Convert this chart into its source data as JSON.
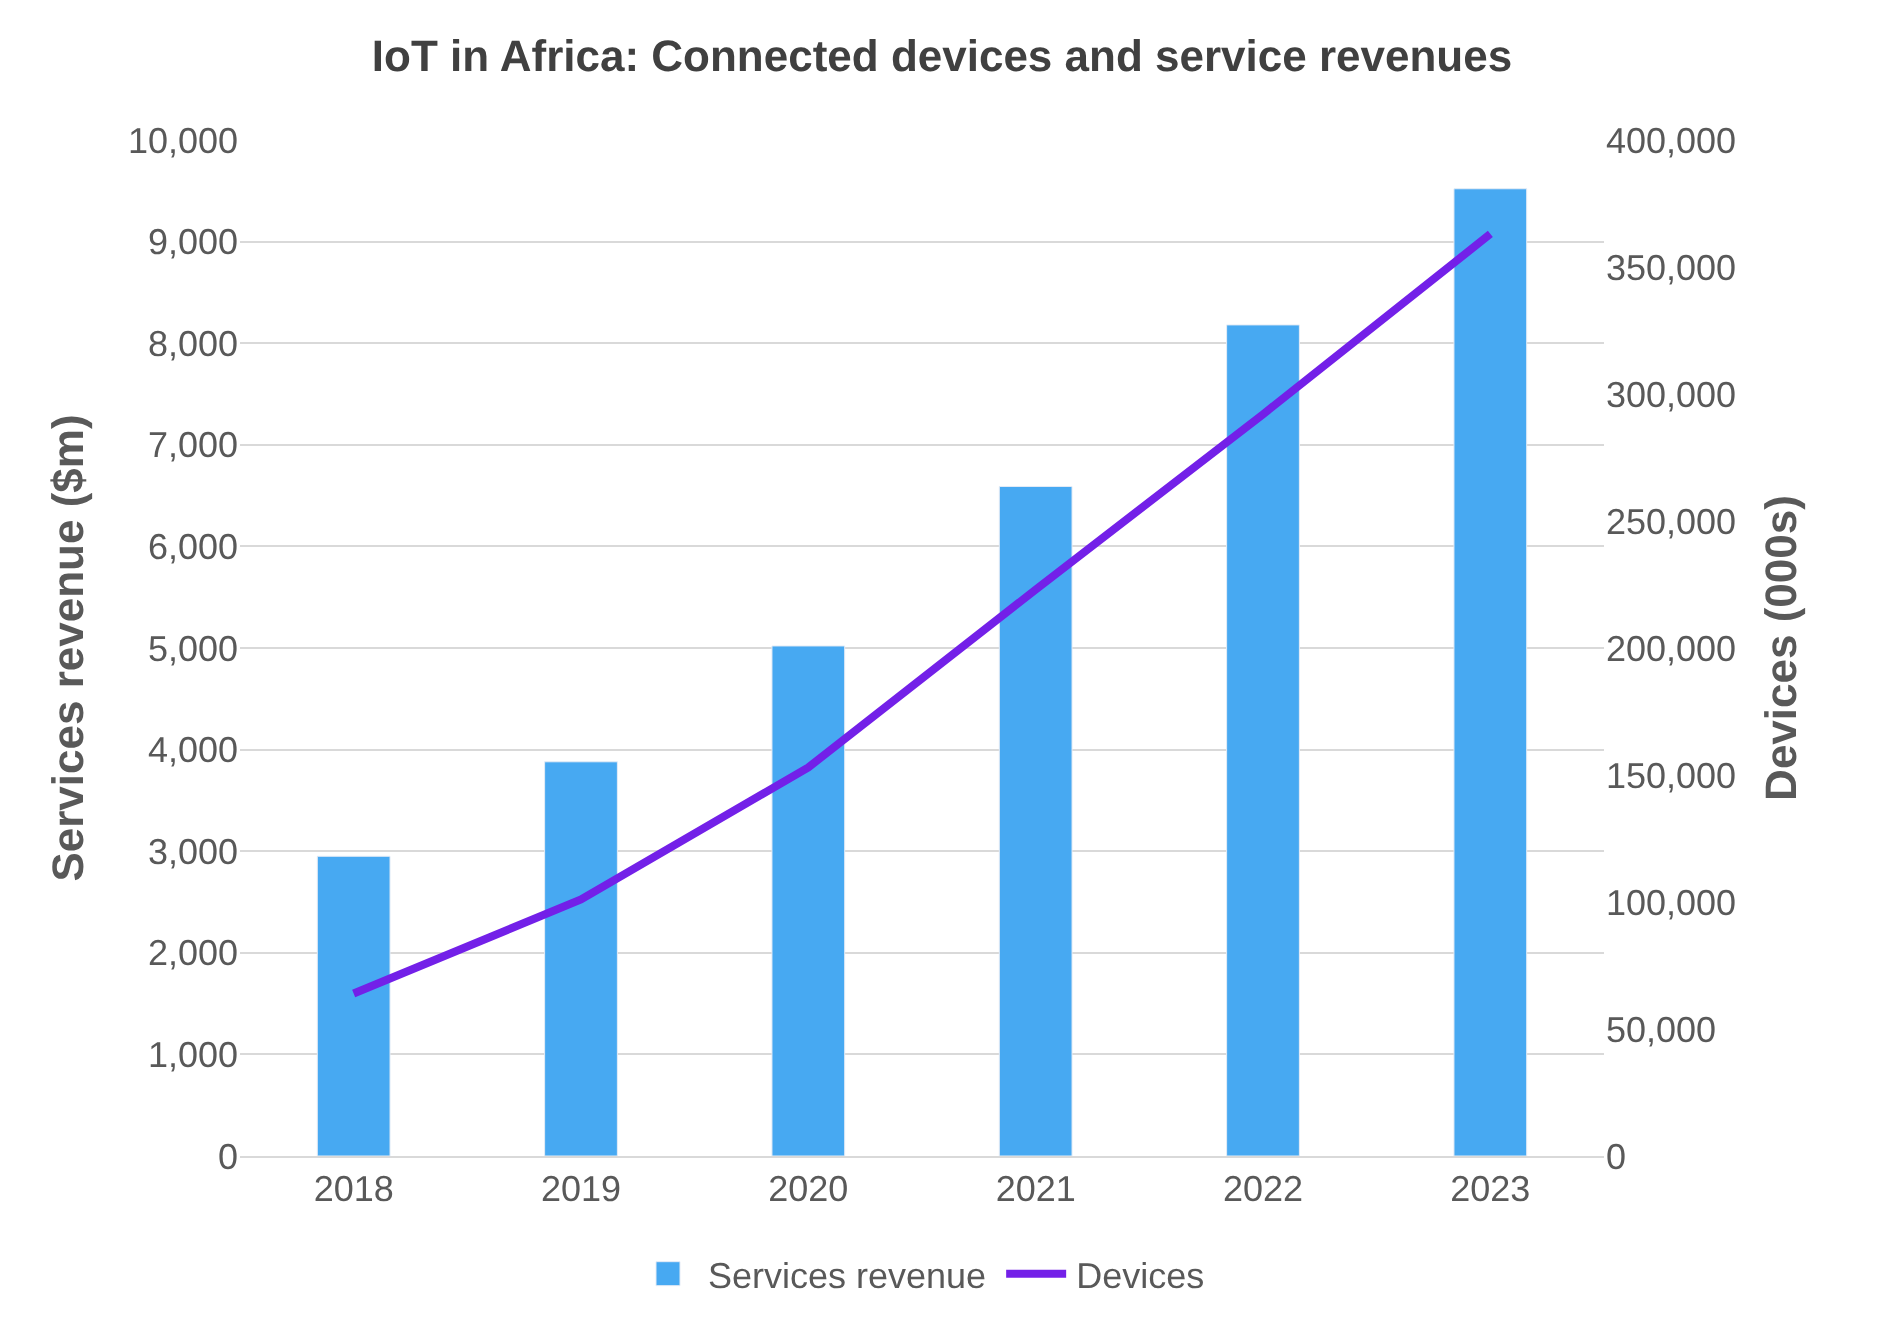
{
  "chart_data": {
    "type": "bar",
    "title": "IoT in Africa: Connected devices and service revenues",
    "ylabel": "Services revenue ($m)",
    "y2label": "Devices (000s)",
    "categories": [
      "2018",
      "2019",
      "2020",
      "2021",
      "2022",
      "2023"
    ],
    "series": [
      {
        "name": "Services revenue",
        "color": "#47a9f2",
        "values": [
          2950,
          3880,
          5020,
          6590,
          8180,
          9520
        ]
      },
      {
        "name": "Devices",
        "type": "line",
        "axis": "y2",
        "color": "#7320e8",
        "values": [
          64000,
          101000,
          153000,
          223000,
          292000,
          363000
        ]
      }
    ],
    "ylim": [
      0,
      10000
    ],
    "yticks": [
      {
        "value": 0,
        "label": "0"
      },
      {
        "value": 1000,
        "label": "1,000"
      },
      {
        "value": 2000,
        "label": "2,000"
      },
      {
        "value": 3000,
        "label": "3,000"
      },
      {
        "value": 4000,
        "label": "4,000"
      },
      {
        "value": 5000,
        "label": "5,000"
      },
      {
        "value": 6000,
        "label": "6,000"
      },
      {
        "value": 7000,
        "label": "7,000"
      },
      {
        "value": 8000,
        "label": "8,000"
      },
      {
        "value": 9000,
        "label": "9,000"
      },
      {
        "value": 10000,
        "label": "10,000"
      }
    ],
    "y2lim": [
      0,
      400000
    ],
    "y2ticks": [
      {
        "value": 0,
        "label": "0"
      },
      {
        "value": 50000,
        "label": "50,000"
      },
      {
        "value": 100000,
        "label": "100,000"
      },
      {
        "value": 150000,
        "label": "150,000"
      },
      {
        "value": 200000,
        "label": "200,000"
      },
      {
        "value": 250000,
        "label": "250,000"
      },
      {
        "value": 300000,
        "label": "300,000"
      },
      {
        "value": 350000,
        "label": "350,000"
      },
      {
        "value": 400000,
        "label": "400,000"
      }
    ],
    "grid": "y",
    "legend": "bottom",
    "marker": "none",
    "line_style": "solid"
  }
}
